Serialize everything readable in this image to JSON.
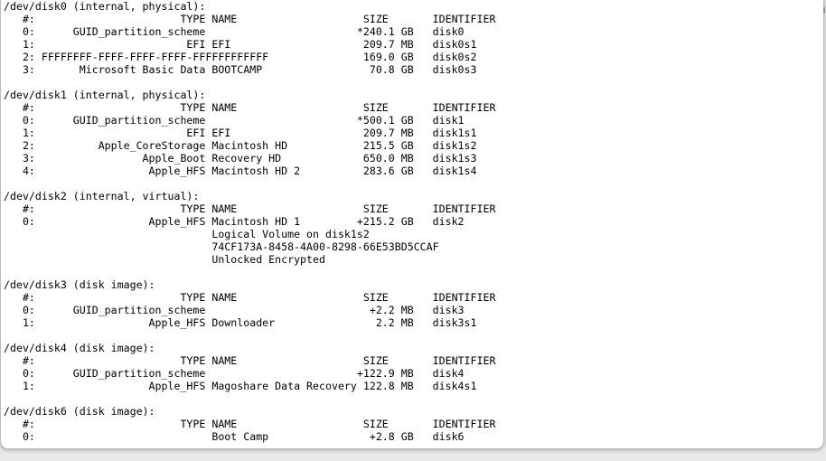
{
  "window": {
    "surface_color": "#ffffff",
    "backdrop_color": "#e9e9e9",
    "border_color": "#bcbcbc",
    "text_color": "#000000",
    "scroll_tick_color": "#8f8f8f"
  },
  "terminal": {
    "column_headers": {
      "number": "#:",
      "type": "TYPE",
      "name": "NAME",
      "size": "SIZE",
      "identifier": "IDENTIFIER"
    },
    "disks": [
      {
        "device": "/dev/disk0",
        "kind": "internal, physical",
        "rows": [
          {
            "number": "0",
            "type": "GUID_partition_scheme",
            "name": "",
            "size": "*240.1 GB",
            "identifier": "disk0"
          },
          {
            "number": "1",
            "type": "EFI",
            "name": "EFI",
            "size": "209.7 MB",
            "identifier": "disk0s1"
          },
          {
            "number": "2",
            "type": "FFFFFFFF-FFFF-FFFF-FFFF-FFFFFFFFFFFF",
            "name": "",
            "size": "169.0 GB",
            "identifier": "disk0s2"
          },
          {
            "number": "3",
            "type": "Microsoft Basic Data",
            "name": "BOOTCAMP",
            "size": "70.8 GB",
            "identifier": "disk0s3"
          }
        ]
      },
      {
        "device": "/dev/disk1",
        "kind": "internal, physical",
        "rows": [
          {
            "number": "0",
            "type": "GUID_partition_scheme",
            "name": "",
            "size": "*500.1 GB",
            "identifier": "disk1"
          },
          {
            "number": "1",
            "type": "EFI",
            "name": "EFI",
            "size": "209.7 MB",
            "identifier": "disk1s1"
          },
          {
            "number": "2",
            "type": "Apple_CoreStorage",
            "name": "Macintosh HD",
            "size": "215.5 GB",
            "identifier": "disk1s2"
          },
          {
            "number": "3",
            "type": "Apple_Boot",
            "name": "Recovery HD",
            "size": "650.0 MB",
            "identifier": "disk1s3"
          },
          {
            "number": "4",
            "type": "Apple_HFS",
            "name": "Macintosh HD 2",
            "size": "283.6 GB",
            "identifier": "disk1s4"
          }
        ]
      },
      {
        "device": "/dev/disk2",
        "kind": "internal, virtual",
        "rows": [
          {
            "number": "0",
            "type": "Apple_HFS",
            "name": "Macintosh HD 1",
            "size": "+215.2 GB",
            "identifier": "disk2",
            "details": [
              "Logical Volume on disk1s2",
              "74CF173A-8458-4A00-8298-66E53BD5CCAF",
              "Unlocked Encrypted"
            ]
          }
        ]
      },
      {
        "device": "/dev/disk3",
        "kind": "disk image",
        "rows": [
          {
            "number": "0",
            "type": "GUID_partition_scheme",
            "name": "",
            "size": "+2.2 MB",
            "identifier": "disk3"
          },
          {
            "number": "1",
            "type": "Apple_HFS",
            "name": "Downloader",
            "size": "2.2 MB",
            "identifier": "disk3s1"
          }
        ]
      },
      {
        "device": "/dev/disk4",
        "kind": "disk image",
        "rows": [
          {
            "number": "0",
            "type": "GUID_partition_scheme",
            "name": "",
            "size": "+122.9 MB",
            "identifier": "disk4"
          },
          {
            "number": "1",
            "type": "Apple_HFS",
            "name": "Magoshare Data Recovery",
            "size": "122.8 MB",
            "identifier": "disk4s1"
          }
        ]
      },
      {
        "device": "/dev/disk6",
        "kind": "disk image",
        "rows": [
          {
            "number": "0",
            "type": "",
            "name": "Boot Camp",
            "size": "+2.8 GB",
            "identifier": "disk6"
          }
        ]
      }
    ]
  }
}
